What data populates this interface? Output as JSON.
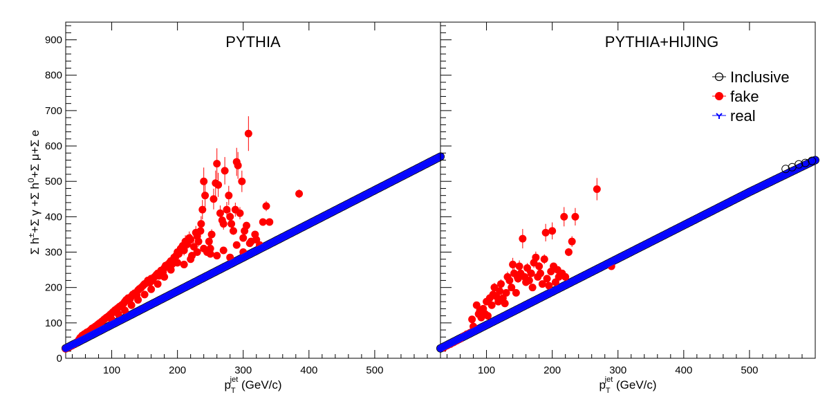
{
  "figure": {
    "ylabel_parts": {
      "s1": "Σ h",
      "s1_sup": "±",
      "s2": "+Σ γ +Σ h",
      "s2_sup": "0",
      "s3": "+Σ μ+Σ e"
    },
    "xlabel_parts": {
      "p": "p",
      "sub": "T",
      "sup": "jet",
      "unit": " (GeV/c)"
    }
  },
  "chart_data": [
    {
      "type": "scatter",
      "title": "PYTHIA",
      "xlim": [
        30,
        600
      ],
      "ylim": [
        0,
        950
      ],
      "x_ticks": [
        100,
        200,
        300,
        400,
        500
      ],
      "y_ticks": [
        0,
        100,
        200,
        300,
        400,
        500,
        600,
        700,
        800,
        900
      ],
      "grid": false,
      "legend": null,
      "series": [
        {
          "name": "real",
          "color": "#0000ff",
          "marker": "filled-circle",
          "relation": "y ≈ 0.95·x (continuous band of points)",
          "x_range": [
            30,
            600
          ],
          "points": [
            [
              30,
              28
            ],
            [
              100,
              95
            ],
            [
              200,
              190
            ],
            [
              300,
              285
            ],
            [
              400,
              380
            ],
            [
              500,
              475
            ],
            [
              600,
              570
            ]
          ]
        },
        {
          "name": "Inclusive",
          "color": "#000000",
          "marker": "open-circle",
          "relation": "coincides with real band",
          "points": [
            [
              30,
              28
            ],
            [
              600,
              570
            ]
          ]
        },
        {
          "name": "fake",
          "color": "#ff0000",
          "marker": "filled-circle",
          "points": [
            [
              30,
              27
            ],
            [
              35,
              31
            ],
            [
              40,
              36
            ],
            [
              45,
              42
            ],
            [
              50,
              52
            ],
            [
              52,
              58
            ],
            [
              55,
              64
            ],
            [
              58,
              68
            ],
            [
              60,
              70
            ],
            [
              62,
              73
            ],
            [
              65,
              76
            ],
            [
              68,
              80
            ],
            [
              70,
              84
            ],
            [
              72,
              86
            ],
            [
              75,
              90
            ],
            [
              78,
              94
            ],
            [
              80,
              97
            ],
            [
              82,
              100
            ],
            [
              85,
              104
            ],
            [
              88,
              109
            ],
            [
              90,
              112
            ],
            [
              92,
              115
            ],
            [
              95,
              119
            ],
            [
              98,
              124
            ],
            [
              100,
              127
            ],
            [
              102,
              131
            ],
            [
              105,
              136
            ],
            [
              108,
              140
            ],
            [
              110,
              143
            ],
            [
              112,
              146
            ],
            [
              115,
              150
            ],
            [
              118,
              155
            ],
            [
              120,
              160
            ],
            [
              122,
              165
            ],
            [
              125,
              170
            ],
            [
              128,
              168
            ],
            [
              130,
              175
            ],
            [
              132,
              180
            ],
            [
              135,
              184
            ],
            [
              138,
              178
            ],
            [
              140,
              192
            ],
            [
              142,
              196
            ],
            [
              145,
              200
            ],
            [
              148,
              206
            ],
            [
              150,
              210
            ],
            [
              152,
              212
            ],
            [
              155,
              220
            ],
            [
              158,
              214
            ],
            [
              160,
              225
            ],
            [
              162,
              220
            ],
            [
              165,
              230
            ],
            [
              168,
              236
            ],
            [
              170,
              240
            ],
            [
              172,
              233
            ],
            [
              175,
              248
            ],
            [
              178,
              243
            ],
            [
              180,
              255
            ],
            [
              182,
              262
            ],
            [
              185,
              258
            ],
            [
              188,
              270
            ],
            [
              190,
              275
            ],
            [
              192,
              266
            ],
            [
              195,
              285
            ],
            [
              198,
              290
            ],
            [
              200,
              300
            ],
            [
              202,
              295
            ],
            [
              205,
              310
            ],
            [
              208,
              318
            ],
            [
              210,
              305
            ],
            [
              212,
              330
            ],
            [
              215,
              322
            ],
            [
              218,
              340
            ],
            [
              220,
              335
            ],
            [
              222,
              290
            ],
            [
              225,
              315
            ],
            [
              228,
              355
            ],
            [
              230,
              345
            ],
            [
              232,
              330
            ],
            [
              235,
              360
            ],
            [
              236,
              380
            ],
            [
              238,
              420
            ],
            [
              240,
              500
            ],
            [
              242,
              460
            ],
            [
              245,
              300
            ],
            [
              248,
              330
            ],
            [
              250,
              310
            ],
            [
              252,
              350
            ],
            [
              255,
              450
            ],
            [
              258,
              495
            ],
            [
              260,
              550
            ],
            [
              262,
              490
            ],
            [
              265,
              410
            ],
            [
              268,
              390
            ],
            [
              270,
              380
            ],
            [
              272,
              530
            ],
            [
              275,
              420
            ],
            [
              278,
              460
            ],
            [
              280,
              400
            ],
            [
              282,
              380
            ],
            [
              285,
              360
            ],
            [
              288,
              420
            ],
            [
              290,
              555
            ],
            [
              292,
              545
            ],
            [
              295,
              410
            ],
            [
              298,
              500
            ],
            [
              300,
              340
            ],
            [
              302,
              360
            ],
            [
              305,
              375
            ],
            [
              308,
              635
            ],
            [
              312,
              330
            ],
            [
              318,
              350
            ],
            [
              325,
              320
            ],
            [
              330,
              385
            ],
            [
              335,
              430
            ],
            [
              340,
              385
            ],
            [
              385,
              465
            ],
            [
              100,
              110
            ],
            [
              110,
              125
            ],
            [
              120,
              135
            ],
            [
              130,
              150
            ],
            [
              140,
              165
            ],
            [
              150,
              180
            ],
            [
              160,
              195
            ],
            [
              170,
              210
            ],
            [
              180,
              230
            ],
            [
              190,
              250
            ],
            [
              200,
              270
            ],
            [
              210,
              265
            ],
            [
              220,
              280
            ],
            [
              230,
              300
            ],
            [
              240,
              310
            ],
            [
              250,
              295
            ],
            [
              260,
              290
            ],
            [
              270,
              305
            ],
            [
              280,
              285
            ],
            [
              290,
              320
            ],
            [
              300,
              300
            ],
            [
              310,
              325
            ],
            [
              320,
              335
            ]
          ]
        }
      ]
    },
    {
      "type": "scatter",
      "title": "PYTHIA+HIJING",
      "xlim": [
        30,
        600
      ],
      "ylim": [
        0,
        950
      ],
      "x_ticks": [
        100,
        200,
        300,
        400,
        500
      ],
      "y_ticks": [
        0,
        100,
        200,
        300,
        400,
        500,
        600,
        700,
        800,
        900
      ],
      "grid": false,
      "legend": {
        "placement": "top-right",
        "entries": [
          {
            "label": "Inclusive",
            "marker": "open-circle",
            "color": "#000000"
          },
          {
            "label": "fake",
            "marker": "filled-circle",
            "color": "#ff0000"
          },
          {
            "label": "real",
            "marker": "star",
            "color": "#0000ff"
          }
        ]
      },
      "series": [
        {
          "name": "real",
          "color": "#0000ff",
          "marker": "filled-circle",
          "relation": "y ≈ 0.94·x (continuous band of points)",
          "x_range": [
            30,
            600
          ],
          "points": [
            [
              30,
              28
            ],
            [
              100,
              94
            ],
            [
              200,
              188
            ],
            [
              300,
              282
            ],
            [
              400,
              376
            ],
            [
              500,
              470
            ],
            [
              600,
              560
            ]
          ]
        },
        {
          "name": "Inclusive",
          "color": "#000000",
          "marker": "open-circle",
          "points": [
            [
              555,
              535
            ],
            [
              565,
              540
            ],
            [
              575,
              548
            ],
            [
              585,
              552
            ],
            [
              595,
              558
            ]
          ]
        },
        {
          "name": "fake",
          "color": "#ff0000",
          "marker": "filled-circle",
          "points": [
            [
              35,
              30
            ],
            [
              40,
              36
            ],
            [
              45,
              40
            ],
            [
              50,
              45
            ],
            [
              55,
              50
            ],
            [
              60,
              55
            ],
            [
              65,
              62
            ],
            [
              70,
              68
            ],
            [
              75,
              72
            ],
            [
              78,
              110
            ],
            [
              80,
              90
            ],
            [
              82,
              85
            ],
            [
              85,
              150
            ],
            [
              88,
              125
            ],
            [
              90,
              135
            ],
            [
              92,
              115
            ],
            [
              95,
              140
            ],
            [
              98,
              125
            ],
            [
              100,
              160
            ],
            [
              102,
              120
            ],
            [
              105,
              170
            ],
            [
              108,
              150
            ],
            [
              110,
              180
            ],
            [
              112,
              200
            ],
            [
              115,
              175
            ],
            [
              118,
              160
            ],
            [
              120,
              190
            ],
            [
              122,
              210
            ],
            [
              125,
              170
            ],
            [
              128,
              155
            ],
            [
              130,
              185
            ],
            [
              132,
              230
            ],
            [
              135,
              220
            ],
            [
              138,
              200
            ],
            [
              140,
              265
            ],
            [
              142,
              240
            ],
            [
              145,
              185
            ],
            [
              148,
              225
            ],
            [
              150,
              260
            ],
            [
              152,
              240
            ],
            [
              155,
              338
            ],
            [
              158,
              230
            ],
            [
              160,
              215
            ],
            [
              162,
              255
            ],
            [
              165,
              220
            ],
            [
              168,
              240
            ],
            [
              170,
              200
            ],
            [
              172,
              270
            ],
            [
              175,
              285
            ],
            [
              178,
              230
            ],
            [
              180,
              260
            ],
            [
              182,
              240
            ],
            [
              185,
              210
            ],
            [
              188,
              280
            ],
            [
              190,
              355
            ],
            [
              192,
              225
            ],
            [
              195,
              205
            ],
            [
              198,
              245
            ],
            [
              200,
              360
            ],
            [
              202,
              260
            ],
            [
              205,
              215
            ],
            [
              208,
              250
            ],
            [
              210,
              230
            ],
            [
              215,
              240
            ],
            [
              218,
              400
            ],
            [
              220,
              230
            ],
            [
              225,
              300
            ],
            [
              230,
              330
            ],
            [
              235,
              400
            ],
            [
              268,
              478
            ],
            [
              290,
              260
            ]
          ]
        }
      ]
    }
  ]
}
